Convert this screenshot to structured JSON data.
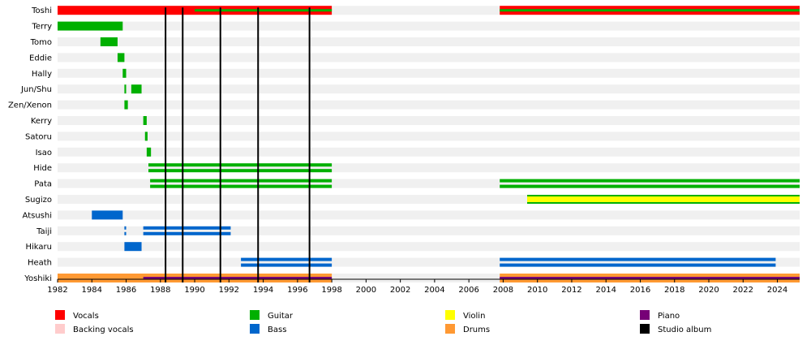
{
  "chart_data": {
    "type": "timeline",
    "x_range": [
      1982,
      2025.3
    ],
    "x_ticks": [
      "1982",
      "1984",
      "1986",
      "1988",
      "1990",
      "1992",
      "1994",
      "1996",
      "1998",
      "2000",
      "2002",
      "2004",
      "2006",
      "2008",
      "2010",
      "2012",
      "2014",
      "2016",
      "2018",
      "2020",
      "2022",
      "2024"
    ],
    "colors": {
      "vocals": "#ff0000",
      "backing_vocals": "#ffcccc",
      "guitar": "#00b000",
      "violin": "#ffff00",
      "bass": "#0066cc",
      "drums": "#ff9933",
      "piano": "#770077",
      "studio_album": "#000000"
    },
    "legend": [
      {
        "key": "vocals",
        "label": "Vocals"
      },
      {
        "key": "backing_vocals",
        "label": "Backing vocals"
      },
      {
        "key": "guitar",
        "label": "Guitar"
      },
      {
        "key": "bass",
        "label": "Bass"
      },
      {
        "key": "violin",
        "label": "Violin"
      },
      {
        "key": "drums",
        "label": "Drums"
      },
      {
        "key": "piano",
        "label": "Piano"
      },
      {
        "key": "studio_album",
        "label": "Studio album"
      }
    ],
    "members": [
      {
        "name": "Toshi",
        "periods": [
          {
            "start": 1982,
            "end": 1998,
            "roles": [
              "vocals"
            ],
            "overlay": {
              "start": 1990,
              "end": 1998,
              "role": "guitar"
            }
          },
          {
            "start": 2007.8,
            "end": 2025.3,
            "roles": [
              "vocals"
            ],
            "overlay": {
              "start": 2007.8,
              "end": 2025.3,
              "role": "guitar"
            }
          }
        ]
      },
      {
        "name": "Terry",
        "periods": [
          {
            "start": 1982,
            "end": 1985.8,
            "roles": [
              "guitar"
            ]
          }
        ]
      },
      {
        "name": "Tomo",
        "periods": [
          {
            "start": 1984.5,
            "end": 1985.5,
            "roles": [
              "guitar"
            ]
          }
        ]
      },
      {
        "name": "Eddie",
        "periods": [
          {
            "start": 1985.5,
            "end": 1985.9,
            "roles": [
              "guitar"
            ]
          }
        ]
      },
      {
        "name": "Hally",
        "periods": [
          {
            "start": 1985.8,
            "end": 1986.0,
            "roles": [
              "guitar"
            ]
          }
        ]
      },
      {
        "name": "Jun/Shu",
        "periods": [
          {
            "start": 1985.9,
            "end": 1986.0,
            "roles": [
              "guitar"
            ]
          },
          {
            "start": 1986.3,
            "end": 1986.9,
            "roles": [
              "guitar"
            ]
          }
        ]
      },
      {
        "name": "Zen/Xenon",
        "periods": [
          {
            "start": 1985.9,
            "end": 1986.1,
            "roles": [
              "guitar"
            ]
          }
        ]
      },
      {
        "name": "Kerry",
        "periods": [
          {
            "start": 1987.0,
            "end": 1987.2,
            "roles": [
              "guitar"
            ]
          }
        ]
      },
      {
        "name": "Satoru",
        "periods": [
          {
            "start": 1987.1,
            "end": 1987.25,
            "roles": [
              "guitar"
            ]
          }
        ]
      },
      {
        "name": "Isao",
        "periods": [
          {
            "start": 1987.2,
            "end": 1987.45,
            "roles": [
              "guitar"
            ]
          }
        ]
      },
      {
        "name": "Hide",
        "periods": [
          {
            "start": 1987.3,
            "end": 1998,
            "roles": [
              "guitar",
              "guitar"
            ]
          }
        ]
      },
      {
        "name": "Pata",
        "periods": [
          {
            "start": 1987.4,
            "end": 1998,
            "roles": [
              "guitar",
              "guitar"
            ]
          },
          {
            "start": 2007.8,
            "end": 2025.3,
            "roles": [
              "guitar",
              "guitar"
            ]
          }
        ]
      },
      {
        "name": "Sugizo",
        "periods": [
          {
            "start": 2009.4,
            "end": 2025.3,
            "roles": [
              "guitar",
              "violin",
              "guitar"
            ]
          }
        ]
      },
      {
        "name": "Atsushi",
        "periods": [
          {
            "start": 1984.0,
            "end": 1985.8,
            "roles": [
              "bass"
            ]
          }
        ]
      },
      {
        "name": "Taiji",
        "periods": [
          {
            "start": 1985.9,
            "end": 1986.0,
            "roles": [
              "bass",
              "bass"
            ]
          },
          {
            "start": 1987.0,
            "end": 1992.1,
            "roles": [
              "bass",
              "bass"
            ]
          }
        ]
      },
      {
        "name": "Hikaru",
        "periods": [
          {
            "start": 1985.9,
            "end": 1986.9,
            "roles": [
              "bass"
            ]
          }
        ]
      },
      {
        "name": "Heath",
        "periods": [
          {
            "start": 1992.7,
            "end": 1998,
            "roles": [
              "bass",
              "bass"
            ]
          },
          {
            "start": 2007.8,
            "end": 2023.9,
            "roles": [
              "bass",
              "bass"
            ]
          }
        ]
      },
      {
        "name": "Yoshiki",
        "periods": [
          {
            "start": 1982,
            "end": 1998,
            "roles": [
              "drums"
            ],
            "overlay": {
              "start": 1987.0,
              "end": 1998,
              "role": "piano"
            }
          },
          {
            "start": 2007.8,
            "end": 2025.3,
            "roles": [
              "drums"
            ],
            "overlay": {
              "start": 2007.8,
              "end": 2025.3,
              "role": "piano"
            }
          }
        ]
      }
    ],
    "studio_albums": [
      1988.3,
      1989.3,
      1991.5,
      1993.7,
      1996.7
    ]
  }
}
